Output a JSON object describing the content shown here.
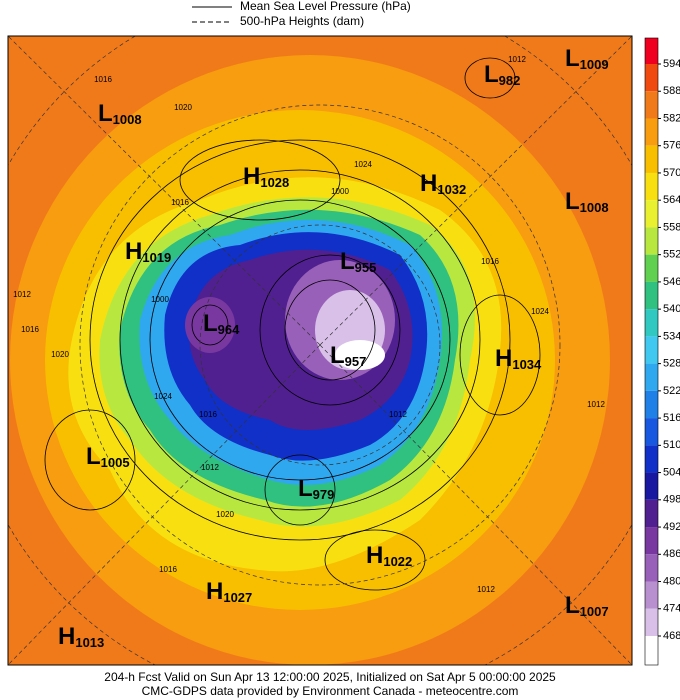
{
  "legend": [
    "Mean Sea Level Pressure (hPa)",
    "500-hPa Heights (dam)"
  ],
  "colorbar": {
    "ticks": [
      594,
      588,
      582,
      576,
      570,
      564,
      558,
      552,
      546,
      540,
      534,
      528,
      522,
      516,
      510,
      504,
      498,
      492,
      486,
      480,
      474,
      468
    ],
    "colors": [
      "#f00020",
      "#f04a10",
      "#f07a1a",
      "#f89c10",
      "#f8be00",
      "#f8e010",
      "#e8f030",
      "#b8e840",
      "#60d050",
      "#30c080",
      "#30c8c0",
      "#40c8f0",
      "#30a8f0",
      "#2080e8",
      "#1858e0",
      "#1030c8",
      "#1818a0",
      "#502090",
      "#7838a0",
      "#9860b8",
      "#b890d0",
      "#d8c0e8",
      "#ffffff"
    ]
  },
  "centers": [
    {
      "type": "L",
      "value": 1008
    },
    {
      "type": "H",
      "value": 1028
    },
    {
      "type": "H",
      "value": 1032
    },
    {
      "type": "L",
      "value": 982
    },
    {
      "type": "L",
      "value": 1009
    },
    {
      "type": "L",
      "value": 1008
    },
    {
      "type": "H",
      "value": 1019
    },
    {
      "type": "L",
      "value": 955
    },
    {
      "type": "L",
      "value": 964
    },
    {
      "type": "L",
      "value": 957
    },
    {
      "type": "H",
      "value": 1034
    },
    {
      "type": "L",
      "value": 1005
    },
    {
      "type": "L",
      "value": 979
    },
    {
      "type": "H",
      "value": 1022
    },
    {
      "type": "H",
      "value": 1027
    },
    {
      "type": "L",
      "value": 1007
    },
    {
      "type": "H",
      "value": 1013
    }
  ],
  "contour_labels": [
    1016,
    1020,
    1012,
    1024,
    1016,
    1012,
    1016,
    1020,
    1024,
    1000,
    1016,
    1012,
    1016,
    1020,
    1012,
    1024,
    1012,
    1012,
    1016,
    1000
  ],
  "footer": [
    "204-h Fcst Valid on Sun Apr 13 12:00:00 2025, Initialized on Sat Apr  5 00:00:00 2025",
    "CMC-GDPS data provided by Environment Canada - meteocentre.com"
  ]
}
